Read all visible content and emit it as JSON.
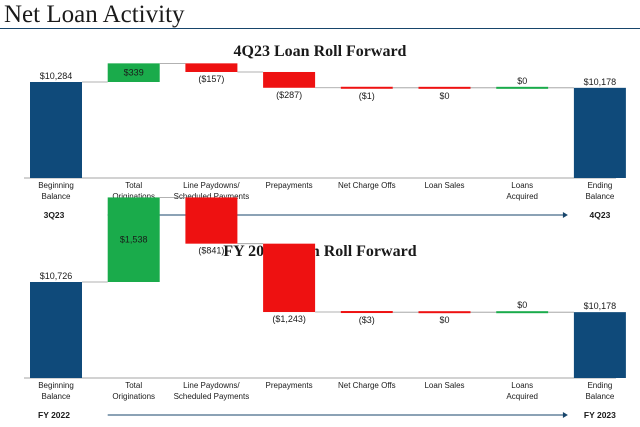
{
  "page": {
    "title": "Net Loan Activity"
  },
  "colors": {
    "navy": "#0f4a7a",
    "green": "#1aab4b",
    "red": "#ee1111",
    "arrow": "#17456b",
    "axis": "#888888",
    "connector": "#999999"
  },
  "chart_data": [
    {
      "type": "waterfall",
      "title": "4Q23 Loan Roll Forward",
      "categories": [
        "Beginning Balance",
        "Total Originations",
        "Line Paydowns/ Scheduled Payments",
        "Prepayments",
        "Net Charge Offs",
        "Loan Sales",
        "Loans Acquired",
        "Ending Balance"
      ],
      "category_lines": [
        [
          "Beginning",
          "Balance"
        ],
        [
          "Total",
          "Originations"
        ],
        [
          "Line Paydowns/",
          "Scheduled Payments"
        ],
        [
          "Prepayments"
        ],
        [
          "Net Charge Offs"
        ],
        [
          "Loan Sales"
        ],
        [
          "Loans",
          "Acquired"
        ],
        [
          "Ending",
          "Balance"
        ]
      ],
      "values": [
        10284,
        339,
        -157,
        -287,
        -1,
        0,
        0,
        10178
      ],
      "value_labels": [
        "$10,284",
        "$339",
        "($157)",
        "($287)",
        "($1)",
        "$0",
        "$0",
        "$10,178"
      ],
      "kinds": [
        "total",
        "increase",
        "decrease",
        "decrease",
        "decrease",
        "decrease",
        "increase",
        "total"
      ],
      "period_start": "3Q23",
      "period_end": "4Q23"
    },
    {
      "type": "waterfall",
      "title": "FY 2023 Loan Roll Forward",
      "categories": [
        "Beginning Balance",
        "Total Originations",
        "Line Paydowns/ Scheduled Payments",
        "Prepayments",
        "Net Charge Offs",
        "Loan Sales",
        "Loans Acquired",
        "Ending Balance"
      ],
      "category_lines": [
        [
          "Beginning",
          "Balance"
        ],
        [
          "Total",
          "Originations"
        ],
        [
          "Line Paydowns/",
          "Scheduled Payments"
        ],
        [
          "Prepayments"
        ],
        [
          "Net Charge Offs"
        ],
        [
          "Loan Sales"
        ],
        [
          "Loans",
          "Acquired"
        ],
        [
          "Ending",
          "Balance"
        ]
      ],
      "values": [
        10726,
        1538,
        -841,
        -1243,
        -3,
        0,
        0,
        10178
      ],
      "value_labels": [
        "$10,726",
        "$1,538",
        "($841)",
        "($1,243)",
        "($3)",
        "$0",
        "$0",
        "$10,178"
      ],
      "kinds": [
        "total",
        "increase",
        "decrease",
        "decrease",
        "decrease",
        "decrease",
        "increase",
        "total"
      ],
      "period_start": "FY 2022",
      "period_end": "FY 2023"
    }
  ]
}
